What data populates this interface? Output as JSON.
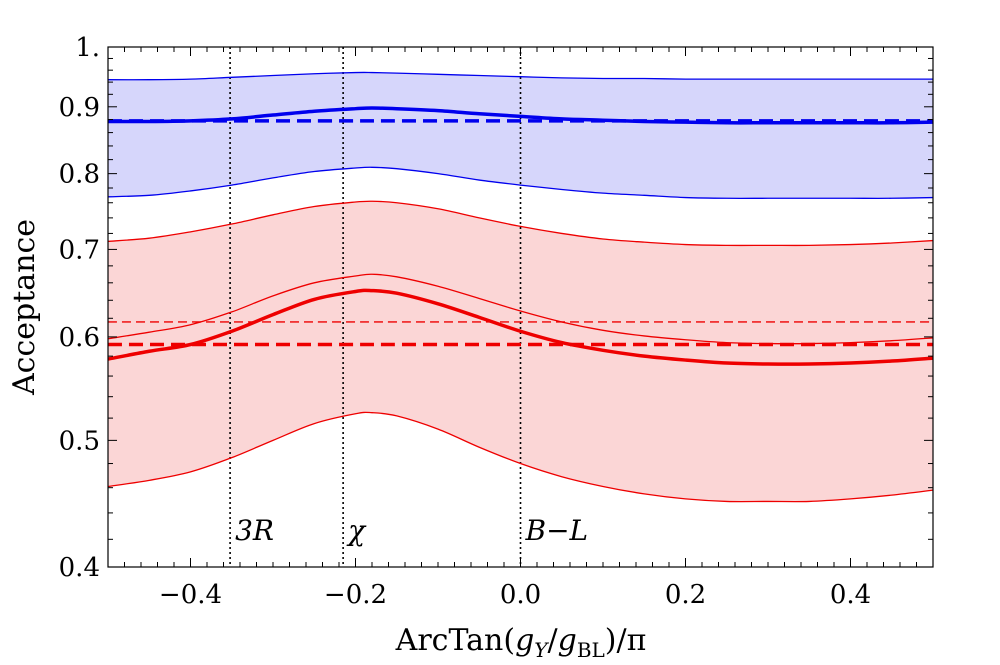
{
  "chart_data": {
    "type": "line",
    "xlabel": "ArcTan(g_Y/g_BL)/π",
    "xlabel_parts": {
      "prefix": "ArcTan(",
      "g": "g",
      "sub_y": "Y",
      "slash": "/",
      "g2": "g",
      "sub_bl": "BL",
      "suffix": ")/π"
    },
    "ylabel": "Acceptance",
    "xlim": [
      -0.5,
      0.5
    ],
    "ylim": [
      0.4,
      1.0
    ],
    "y_scale": "log",
    "x_ticks": [
      -0.4,
      -0.2,
      0.0,
      0.2,
      0.4
    ],
    "x_tick_labels": [
      "−0.4",
      "−0.2",
      "0.0",
      "0.2",
      "0.4"
    ],
    "y_ticks": [
      0.4,
      0.5,
      0.6,
      0.7,
      0.8,
      0.9,
      1.0
    ],
    "y_tick_labels": [
      "0.4",
      "0.5",
      "0.6",
      "0.7",
      "0.8",
      "0.9",
      "1."
    ],
    "vertical_markers": [
      {
        "x": -0.352,
        "label": "3R"
      },
      {
        "x": -0.215,
        "label": "χ"
      },
      {
        "x": 0.0,
        "label": "B−L"
      }
    ],
    "x": [
      -0.5,
      -0.45,
      -0.4,
      -0.35,
      -0.3,
      -0.25,
      -0.2,
      -0.18,
      -0.15,
      -0.1,
      -0.05,
      0.0,
      0.05,
      0.1,
      0.15,
      0.2,
      0.25,
      0.3,
      0.35,
      0.4,
      0.45,
      0.5
    ],
    "series": [
      {
        "color": "#0000ee",
        "style": "solid",
        "width": 3.5,
        "values": [
          0.877,
          0.877,
          0.878,
          0.881,
          0.887,
          0.893,
          0.897,
          0.898,
          0.897,
          0.894,
          0.889,
          0.885,
          0.881,
          0.879,
          0.877,
          0.876,
          0.875,
          0.875,
          0.875,
          0.875,
          0.875,
          0.876
        ]
      },
      {
        "color": "#0000ee",
        "style": "dashed",
        "width": 3.5,
        "values": [
          0.878,
          0.878,
          0.878,
          0.878,
          0.878,
          0.878,
          0.878,
          0.878,
          0.878,
          0.878,
          0.878,
          0.878,
          0.878,
          0.878,
          0.878,
          0.878,
          0.878,
          0.878,
          0.878,
          0.878,
          0.878,
          0.878
        ]
      },
      {
        "color": "#0000ee",
        "style": "solid",
        "width": 1.3,
        "values": [
          0.944,
          0.944,
          0.945,
          0.948,
          0.951,
          0.954,
          0.956,
          0.956,
          0.955,
          0.953,
          0.951,
          0.949,
          0.947,
          0.946,
          0.946,
          0.945,
          0.945,
          0.945,
          0.945,
          0.945,
          0.945,
          0.945
        ]
      },
      {
        "color": "#0000ee",
        "style": "solid",
        "width": 1.3,
        "values": [
          0.768,
          0.77,
          0.776,
          0.784,
          0.794,
          0.803,
          0.808,
          0.809,
          0.807,
          0.8,
          0.791,
          0.784,
          0.778,
          0.773,
          0.77,
          0.767,
          0.766,
          0.766,
          0.766,
          0.766,
          0.766,
          0.767
        ]
      },
      {
        "color": "#ee0000",
        "style": "solid",
        "width": 3.5,
        "values": [
          0.577,
          0.585,
          0.592,
          0.606,
          0.624,
          0.641,
          0.65,
          0.651,
          0.648,
          0.636,
          0.621,
          0.606,
          0.594,
          0.586,
          0.58,
          0.576,
          0.573,
          0.572,
          0.572,
          0.573,
          0.575,
          0.578
        ]
      },
      {
        "color": "#ee0000",
        "style": "dashed",
        "width": 3.5,
        "values": [
          0.592,
          0.592,
          0.592,
          0.592,
          0.592,
          0.592,
          0.592,
          0.592,
          0.592,
          0.592,
          0.592,
          0.592,
          0.592,
          0.592,
          0.592,
          0.592,
          0.592,
          0.592,
          0.592,
          0.592,
          0.592,
          0.592
        ]
      },
      {
        "color": "#ee0000",
        "style": "dashed",
        "width": 1.3,
        "values": [
          0.616,
          0.616,
          0.616,
          0.616,
          0.616,
          0.616,
          0.616,
          0.616,
          0.616,
          0.616,
          0.616,
          0.616,
          0.616,
          0.616,
          0.616,
          0.616,
          0.616,
          0.616,
          0.616,
          0.616,
          0.616,
          0.616
        ]
      },
      {
        "color": "#ee0000",
        "style": "solid",
        "width": 1.3,
        "values": [
          0.598,
          0.605,
          0.613,
          0.627,
          0.645,
          0.66,
          0.668,
          0.67,
          0.667,
          0.656,
          0.642,
          0.628,
          0.616,
          0.607,
          0.601,
          0.597,
          0.594,
          0.593,
          0.593,
          0.594,
          0.596,
          0.599
        ]
      },
      {
        "color": "#ee0000",
        "style": "solid",
        "width": 1.3,
        "values": [
          0.71,
          0.714,
          0.722,
          0.732,
          0.744,
          0.755,
          0.761,
          0.762,
          0.76,
          0.752,
          0.74,
          0.729,
          0.72,
          0.713,
          0.709,
          0.706,
          0.705,
          0.705,
          0.705,
          0.706,
          0.708,
          0.711
        ]
      },
      {
        "color": "#ee0000",
        "style": "solid",
        "width": 1.3,
        "values": [
          0.461,
          0.466,
          0.473,
          0.485,
          0.5,
          0.515,
          0.524,
          0.525,
          0.522,
          0.51,
          0.494,
          0.48,
          0.469,
          0.461,
          0.455,
          0.451,
          0.449,
          0.449,
          0.449,
          0.451,
          0.454,
          0.458
        ]
      }
    ],
    "bands": [
      {
        "color": "#d6d6fb",
        "upper_series": 2,
        "lower_series": 3
      },
      {
        "color": "#fbd6d6",
        "upper_series": 8,
        "lower_series": 9
      }
    ],
    "grid": false,
    "legend": "none"
  }
}
